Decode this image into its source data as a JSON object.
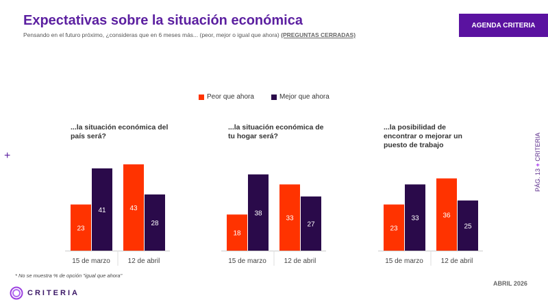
{
  "header": {
    "title": "Expectativas sobre la situación económica",
    "subtitle": "Pensando en el futuro próximo, ¿consideras que en 6 meses más... (peor, mejor o igual que ahora)",
    "subtitle_tag": "(PREGUNTAS CERRADAS)",
    "badge": "AGENDA CRITERIA"
  },
  "side": {
    "page": "PÁG. 13",
    "plus": "+",
    "brand": "CRITERIA"
  },
  "plus_mark": "+",
  "footer": {
    "footnote": "* No se muestra % de opción \"igual que ahora\"",
    "date": "ABRIL 2026",
    "logo": "CRITERIA"
  },
  "colors": {
    "peor": "#ff3300",
    "mejor": "#2a0a4a",
    "accent": "#5a12a0"
  },
  "chart_data": [
    {
      "type": "bar",
      "title": "...la situación económica del país será?",
      "categories": [
        "15 de marzo",
        "12 de abril"
      ],
      "series": [
        {
          "name": "Peor que ahora",
          "values": [
            23,
            43
          ]
        },
        {
          "name": "Mejor que ahora",
          "values": [
            41,
            28
          ]
        }
      ],
      "legend": "top"
    },
    {
      "type": "bar",
      "title": "...la situación económica de tu hogar será?",
      "categories": [
        "15 de marzo",
        "12 de abril"
      ],
      "series": [
        {
          "name": "Peor que ahora",
          "values": [
            18,
            33
          ]
        },
        {
          "name": "Mejor que ahora",
          "values": [
            38,
            27
          ]
        }
      ],
      "legend": "top"
    },
    {
      "type": "bar",
      "title": "...la posibilidad de encontrar o mejorar un puesto de trabajo",
      "categories": [
        "15 de marzo",
        "12 de abril"
      ],
      "series": [
        {
          "name": "Peor que ahora",
          "values": [
            23,
            36
          ]
        },
        {
          "name": "Mejor que ahora",
          "values": [
            33,
            25
          ]
        }
      ],
      "legend": "top"
    }
  ]
}
